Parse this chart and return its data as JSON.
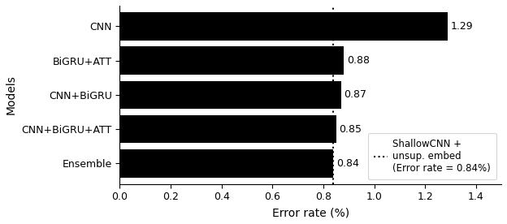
{
  "categories": [
    "Ensemble",
    "CNN+BiGRU+ATT",
    "CNN+BiGRU",
    "BiGRU+ATT",
    "CNN"
  ],
  "values": [
    0.84,
    0.85,
    0.87,
    0.88,
    1.29
  ],
  "bar_color": "#000000",
  "bar_labels": [
    "0.84",
    "0.85",
    "0.87",
    "0.88",
    "1.29"
  ],
  "vline_x": 0.84,
  "xlabel": "Error rate (%)",
  "ylabel": "Models",
  "xlim": [
    0.0,
    1.5
  ],
  "xticks": [
    0.0,
    0.2,
    0.4,
    0.6,
    0.8,
    1.0,
    1.2,
    1.4
  ],
  "legend_label_line1": "ShallowCNN +",
  "legend_label_line2": "unsup. embed",
  "legend_label_line3": "(Error rate = 0.84%)",
  "label_fontsize": 10,
  "tick_fontsize": 9,
  "bar_label_fontsize": 9,
  "bar_height": 0.82,
  "legend_fontsize": 8.5
}
